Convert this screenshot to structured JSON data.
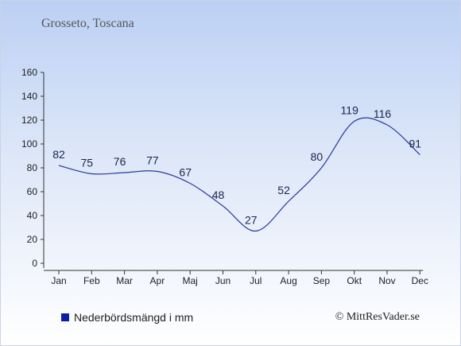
{
  "subtitle": "Grosseto, Toscana",
  "legend": {
    "label": "Nederbördsmängd i mm",
    "color": "#0a1fa8"
  },
  "credit": "© MittResVader.se",
  "colors": {
    "line": "#2a3a9a"
  },
  "chart_data": {
    "type": "line",
    "title": "",
    "xlabel": "",
    "ylabel": "",
    "categories": [
      "Jan",
      "Feb",
      "Mar",
      "Apr",
      "Maj",
      "Jun",
      "Jul",
      "Aug",
      "Sep",
      "Okt",
      "Nov",
      "Dec"
    ],
    "series": [
      {
        "name": "Nederbördsmängd i mm",
        "values": [
          82,
          75,
          76,
          77,
          67,
          48,
          27,
          52,
          80,
          119,
          116,
          91
        ]
      }
    ],
    "ylim": [
      0,
      160
    ],
    "yticks": [
      0,
      20,
      40,
      60,
      80,
      100,
      120,
      140,
      160
    ],
    "grid": false,
    "legend_position": "bottom-left"
  }
}
